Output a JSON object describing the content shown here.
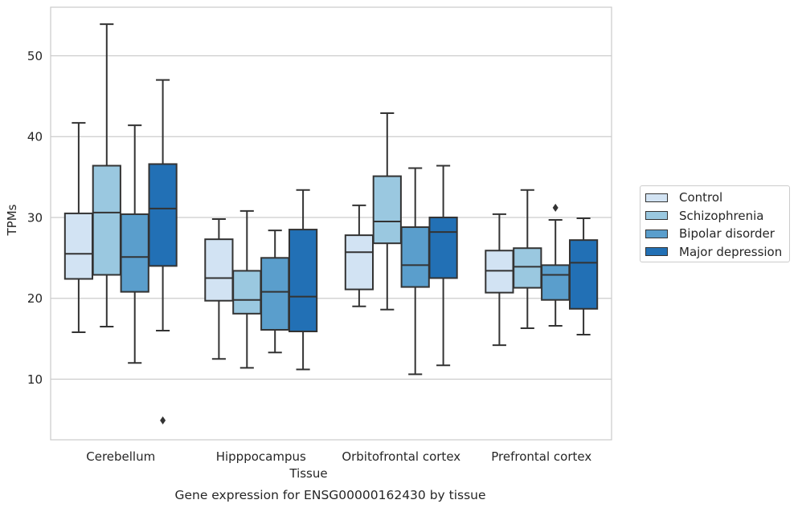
{
  "chart_data": {
    "type": "box",
    "title": "Gene expression for ENSG00000162430 by tissue",
    "xlabel": "Tissue",
    "ylabel": "TPMs",
    "ylim": [
      2.5,
      56
    ],
    "yticks": [
      10,
      20,
      30,
      40,
      50
    ],
    "grid": "horizontal",
    "legend_position": "right",
    "categories": [
      "Cerebellum",
      "Hipppocampus",
      "Orbitofrontal cortex",
      "Prefrontal cortex"
    ],
    "series": [
      {
        "name": "Control",
        "color": "#d2e3f3",
        "boxes": [
          {
            "whislo": 15.8,
            "q1": 22.4,
            "med": 25.5,
            "q3": 30.5,
            "whishi": 41.7,
            "fliers": []
          },
          {
            "whislo": 12.5,
            "q1": 19.7,
            "med": 22.5,
            "q3": 27.3,
            "whishi": 29.8,
            "fliers": []
          },
          {
            "whislo": 19.0,
            "q1": 21.1,
            "med": 25.7,
            "q3": 27.8,
            "whishi": 31.5,
            "fliers": []
          },
          {
            "whislo": 14.2,
            "q1": 20.7,
            "med": 23.4,
            "q3": 25.9,
            "whishi": 30.4,
            "fliers": []
          }
        ]
      },
      {
        "name": "Schizophrenia",
        "color": "#9ac8e0",
        "boxes": [
          {
            "whislo": 16.5,
            "q1": 22.9,
            "med": 30.6,
            "q3": 36.4,
            "whishi": 53.9,
            "fliers": []
          },
          {
            "whislo": 11.4,
            "q1": 18.1,
            "med": 19.8,
            "q3": 23.4,
            "whishi": 30.8,
            "fliers": []
          },
          {
            "whislo": 18.6,
            "q1": 26.8,
            "med": 29.5,
            "q3": 35.1,
            "whishi": 42.9,
            "fliers": []
          },
          {
            "whislo": 16.3,
            "q1": 21.3,
            "med": 23.9,
            "q3": 26.2,
            "whishi": 33.4,
            "fliers": []
          }
        ]
      },
      {
        "name": "Bipolar disorder",
        "color": "#5a9ecc",
        "boxes": [
          {
            "whislo": 12.0,
            "q1": 20.8,
            "med": 25.1,
            "q3": 30.4,
            "whishi": 41.4,
            "fliers": []
          },
          {
            "whislo": 13.3,
            "q1": 16.1,
            "med": 20.8,
            "q3": 25.0,
            "whishi": 28.4,
            "fliers": []
          },
          {
            "whislo": 10.6,
            "q1": 21.4,
            "med": 24.1,
            "q3": 28.8,
            "whishi": 36.1,
            "fliers": []
          },
          {
            "whislo": 16.6,
            "q1": 19.8,
            "med": 22.9,
            "q3": 24.1,
            "whishi": 29.7,
            "fliers": [
              31.2
            ]
          }
        ]
      },
      {
        "name": "Major depression",
        "color": "#2270b5",
        "boxes": [
          {
            "whislo": 16.0,
            "q1": 24.0,
            "med": 31.1,
            "q3": 36.6,
            "whishi": 47.0,
            "fliers": [
              4.9
            ]
          },
          {
            "whislo": 11.2,
            "q1": 15.9,
            "med": 20.2,
            "q3": 28.5,
            "whishi": 33.4,
            "fliers": []
          },
          {
            "whislo": 11.7,
            "q1": 22.5,
            "med": 28.2,
            "q3": 30.0,
            "whishi": 36.4,
            "fliers": []
          },
          {
            "whislo": 15.5,
            "q1": 18.7,
            "med": 24.4,
            "q3": 27.2,
            "whishi": 29.9,
            "fliers": []
          }
        ]
      }
    ]
  }
}
